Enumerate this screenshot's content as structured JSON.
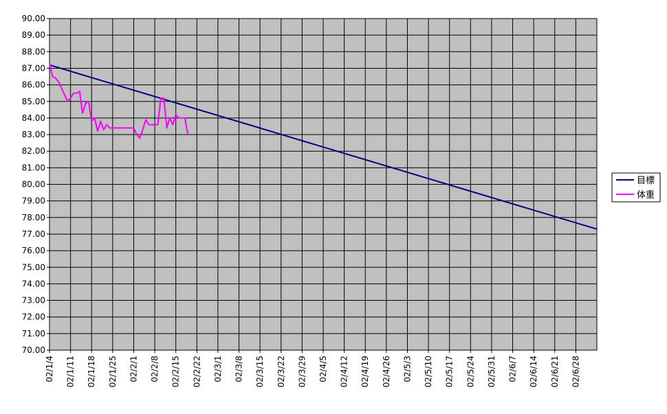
{
  "chart_data": {
    "type": "line",
    "title": "",
    "xlabel": "",
    "ylabel": "",
    "ylim": [
      70,
      90
    ],
    "y_ticks": [
      "70.00",
      "71.00",
      "72.00",
      "73.00",
      "74.00",
      "75.00",
      "76.00",
      "77.00",
      "78.00",
      "79.00",
      "80.00",
      "81.00",
      "82.00",
      "83.00",
      "84.00",
      "85.00",
      "86.00",
      "87.00",
      "88.00",
      "89.00",
      "90.00"
    ],
    "x_start_label": "02/1/4",
    "x_ticks": [
      "02/1/4",
      "02/1/11",
      "02/1/18",
      "02/1/25",
      "02/2/1",
      "02/2/8",
      "02/2/15",
      "02/2/22",
      "02/3/1",
      "02/3/8",
      "02/3/15",
      "02/3/22",
      "02/3/29",
      "02/4/5",
      "02/4/12",
      "02/4/19",
      "02/4/26",
      "02/5/3",
      "02/5/10",
      "02/5/17",
      "02/5/24",
      "02/5/31",
      "02/6/7",
      "02/6/14",
      "02/6/21",
      "02/6/28"
    ],
    "x_range_label_end": "02/7/5",
    "grid": true,
    "plot_background": "#c0c0c0",
    "legend_position": "right",
    "series": [
      {
        "name": "目標",
        "color": "#000080",
        "points": [
          [
            "02/1/4",
            87.2
          ],
          [
            "02/7/5",
            77.3
          ]
        ]
      },
      {
        "name": "体重",
        "color": "#ff00ff",
        "points": [
          [
            "02/1/4",
            87.3
          ],
          [
            "02/1/5",
            86.5
          ],
          [
            "02/1/6",
            86.4
          ],
          [
            "02/1/7",
            86.2
          ],
          [
            "02/1/8",
            85.8
          ],
          [
            "02/1/9",
            85.4
          ],
          [
            "02/1/10",
            85.0
          ],
          [
            "02/1/11",
            85.2
          ],
          [
            "02/1/12",
            85.5
          ],
          [
            "02/1/13",
            85.5
          ],
          [
            "02/1/14",
            85.6
          ],
          [
            "02/1/15",
            84.3
          ],
          [
            "02/1/16",
            84.9
          ],
          [
            "02/1/17",
            85.0
          ],
          [
            "02/1/18",
            83.8
          ],
          [
            "02/1/19",
            84.0
          ],
          [
            "02/1/20",
            83.2
          ],
          [
            "02/1/21",
            83.8
          ],
          [
            "02/1/22",
            83.3
          ],
          [
            "02/1/23",
            83.6
          ],
          [
            "02/1/24",
            83.4
          ],
          [
            "02/1/25",
            83.4
          ],
          [
            "02/1/26",
            83.4
          ],
          [
            "02/1/27",
            83.4
          ],
          [
            "02/1/28",
            83.4
          ],
          [
            "02/1/29",
            83.4
          ],
          [
            "02/1/30",
            83.4
          ],
          [
            "02/1/31",
            83.4
          ],
          [
            "02/2/1",
            83.4
          ],
          [
            "02/2/2",
            83.0
          ],
          [
            "02/2/3",
            82.8
          ],
          [
            "02/2/4",
            83.3
          ],
          [
            "02/2/5",
            83.9
          ],
          [
            "02/2/6",
            83.6
          ],
          [
            "02/2/7",
            83.6
          ],
          [
            "02/2/8",
            83.6
          ],
          [
            "02/2/9",
            83.6
          ],
          [
            "02/2/10",
            85.2
          ],
          [
            "02/2/11",
            85.2
          ],
          [
            "02/2/12",
            83.4
          ],
          [
            "02/2/13",
            84.0
          ],
          [
            "02/2/14",
            83.6
          ],
          [
            "02/2/15",
            84.2
          ],
          [
            "02/2/16",
            84.0
          ],
          [
            "02/2/17",
            84.0
          ],
          [
            "02/2/18",
            84.0
          ],
          [
            "02/2/19",
            83.0
          ]
        ]
      }
    ]
  }
}
